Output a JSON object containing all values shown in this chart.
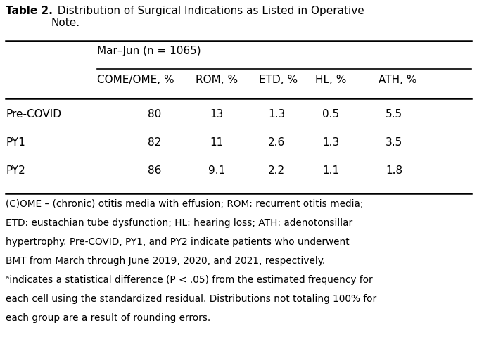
{
  "title_bold": "Table 2.",
  "title_rest": "  Distribution of Surgical Indications as Listed in Operative\nNote.",
  "group_header": "Mar–Jun (n = 1065)",
  "col_headers": [
    "COME/OME, %",
    "ROM, %",
    "ETD, %",
    "HL, %",
    "ATH, %"
  ],
  "row_labels": [
    "Pre-COVID",
    "PY1",
    "PY2"
  ],
  "data": [
    [
      "80",
      "13",
      "1.3",
      "0.5",
      "5.5"
    ],
    [
      "82",
      "11",
      "2.6",
      "1.3",
      "3.5"
    ],
    [
      "86",
      "9.1",
      "2.2",
      "1.1",
      "1.8"
    ]
  ],
  "footnote_line1": "(C)OME – (chronic) otitis media with effusion; ROM: recurrent otitis media;",
  "footnote_line2": "ETD: eustachian tube dysfunction; HL: hearing loss; ATH: adenotonsillar",
  "footnote_line3": "hypertrophy. Pre-COVID, PY1, and PY2 indicate patients who underwent",
  "footnote_line4": "BMT from March through June 2019, 2020, and 2021, respectively.",
  "footnote_line5": "ᵃindicates a statistical difference (P < .05) from the estimated frequency for",
  "footnote_line6": "each cell using the standardized residual. Distributions not totaling 100% for",
  "footnote_line7": "each group are a result of rounding errors.",
  "bg_color": "#ffffff",
  "text_color": "#000000",
  "figsize": [
    6.78,
    4.79
  ],
  "dpi": 100
}
